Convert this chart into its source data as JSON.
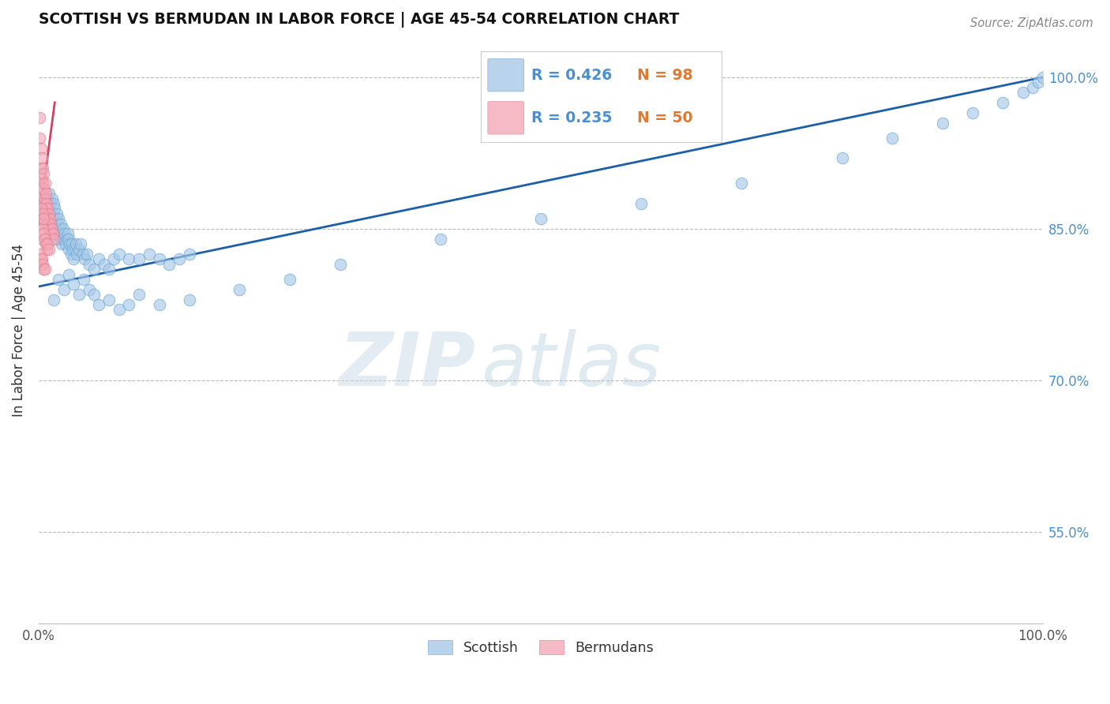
{
  "title": "SCOTTISH VS BERMUDAN IN LABOR FORCE | AGE 45-54 CORRELATION CHART",
  "source_text": "Source: ZipAtlas.com",
  "ylabel": "In Labor Force | Age 45-54",
  "xlim": [
    0.0,
    1.0
  ],
  "ylim": [
    0.46,
    1.04
  ],
  "yticks": [
    0.55,
    0.7,
    0.85,
    1.0
  ],
  "ytick_labels": [
    "55.0%",
    "70.0%",
    "85.0%",
    "100.0%"
  ],
  "legend_R_blue": "R = 0.426",
  "legend_N_blue": "N = 98",
  "legend_R_pink": "R = 0.235",
  "legend_N_pink": "N = 50",
  "blue_color": "#A8C8E8",
  "pink_color": "#F4A8B8",
  "blue_line_color": "#1A5FA8",
  "pink_line_color": "#D04060",
  "legend_text_color": "#4A90D0",
  "legend_N_color": "#E07830",
  "watermark_zip": "ZIP",
  "watermark_atlas": "atlas",
  "blue_scatter_x": [
    0.005,
    0.007,
    0.008,
    0.009,
    0.01,
    0.01,
    0.011,
    0.012,
    0.012,
    0.013,
    0.013,
    0.014,
    0.014,
    0.015,
    0.015,
    0.015,
    0.016,
    0.016,
    0.017,
    0.017,
    0.018,
    0.018,
    0.019,
    0.019,
    0.02,
    0.02,
    0.021,
    0.022,
    0.022,
    0.023,
    0.023,
    0.024,
    0.025,
    0.026,
    0.027,
    0.028,
    0.029,
    0.03,
    0.03,
    0.031,
    0.032,
    0.033,
    0.034,
    0.035,
    0.036,
    0.037,
    0.038,
    0.04,
    0.042,
    0.044,
    0.046,
    0.048,
    0.05,
    0.055,
    0.06,
    0.065,
    0.07,
    0.075,
    0.08,
    0.09,
    0.1,
    0.11,
    0.12,
    0.13,
    0.14,
    0.15,
    0.015,
    0.02,
    0.025,
    0.03,
    0.035,
    0.04,
    0.045,
    0.05,
    0.055,
    0.06,
    0.07,
    0.08,
    0.09,
    0.1,
    0.12,
    0.15,
    0.2,
    0.25,
    0.3,
    0.4,
    0.5,
    0.6,
    0.7,
    0.8,
    0.85,
    0.9,
    0.93,
    0.96,
    0.98,
    0.99,
    0.995,
    1.0
  ],
  "blue_scatter_y": [
    0.875,
    0.87,
    0.88,
    0.865,
    0.86,
    0.885,
    0.87,
    0.855,
    0.875,
    0.86,
    0.88,
    0.85,
    0.865,
    0.845,
    0.86,
    0.875,
    0.855,
    0.87,
    0.845,
    0.86,
    0.85,
    0.865,
    0.84,
    0.855,
    0.845,
    0.86,
    0.85,
    0.84,
    0.855,
    0.845,
    0.835,
    0.85,
    0.84,
    0.845,
    0.835,
    0.84,
    0.845,
    0.83,
    0.84,
    0.835,
    0.825,
    0.835,
    0.83,
    0.82,
    0.83,
    0.835,
    0.825,
    0.83,
    0.835,
    0.825,
    0.82,
    0.825,
    0.815,
    0.81,
    0.82,
    0.815,
    0.81,
    0.82,
    0.825,
    0.82,
    0.82,
    0.825,
    0.82,
    0.815,
    0.82,
    0.825,
    0.78,
    0.8,
    0.79,
    0.805,
    0.795,
    0.785,
    0.8,
    0.79,
    0.785,
    0.775,
    0.78,
    0.77,
    0.775,
    0.785,
    0.775,
    0.78,
    0.79,
    0.8,
    0.815,
    0.84,
    0.86,
    0.875,
    0.895,
    0.92,
    0.94,
    0.955,
    0.965,
    0.975,
    0.985,
    0.99,
    0.995,
    1.0
  ],
  "pink_scatter_x": [
    0.001,
    0.002,
    0.002,
    0.003,
    0.003,
    0.003,
    0.004,
    0.004,
    0.004,
    0.005,
    0.005,
    0.005,
    0.006,
    0.006,
    0.006,
    0.007,
    0.007,
    0.007,
    0.008,
    0.008,
    0.009,
    0.009,
    0.01,
    0.01,
    0.011,
    0.011,
    0.012,
    0.013,
    0.014,
    0.015,
    0.001,
    0.002,
    0.003,
    0.003,
    0.004,
    0.004,
    0.005,
    0.005,
    0.006,
    0.007,
    0.008,
    0.009,
    0.01,
    0.001,
    0.002,
    0.002,
    0.003,
    0.004,
    0.005,
    0.006
  ],
  "pink_scatter_y": [
    0.94,
    0.93,
    0.91,
    0.92,
    0.9,
    0.885,
    0.91,
    0.895,
    0.88,
    0.905,
    0.89,
    0.875,
    0.895,
    0.88,
    0.865,
    0.885,
    0.87,
    0.855,
    0.875,
    0.86,
    0.87,
    0.855,
    0.865,
    0.85,
    0.86,
    0.845,
    0.855,
    0.85,
    0.845,
    0.84,
    0.96,
    0.87,
    0.855,
    0.84,
    0.865,
    0.85,
    0.86,
    0.845,
    0.84,
    0.835,
    0.83,
    0.835,
    0.83,
    0.825,
    0.82,
    0.815,
    0.82,
    0.815,
    0.81,
    0.81
  ],
  "blue_line_y_at_0": 0.793,
  "blue_line_y_at_1": 1.0,
  "pink_line_x0": 0.0,
  "pink_line_x1": 0.016,
  "pink_line_y0": 0.855,
  "pink_line_y1": 0.975
}
